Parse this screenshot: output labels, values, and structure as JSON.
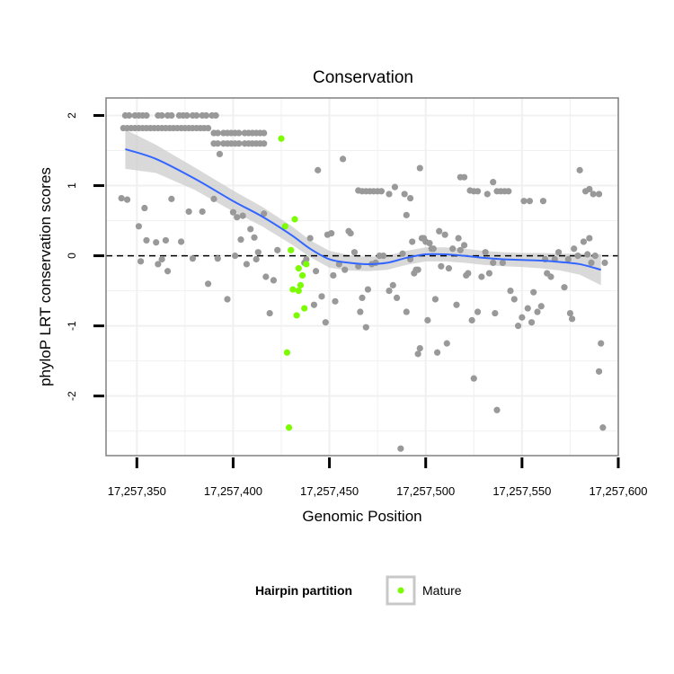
{
  "chart_data": {
    "type": "scatter",
    "title": "Conservation",
    "xlabel": "Genomic Position",
    "ylabel": "phyloP LRT conservation scores",
    "xlim": [
      17257334,
      17257600
    ],
    "ylim": [
      -2.85,
      2.25
    ],
    "xticks": [
      {
        "value": 17257350,
        "label": "17,257,350"
      },
      {
        "value": 17257400,
        "label": "17,257,400"
      },
      {
        "value": 17257450,
        "label": "17,257,450"
      },
      {
        "value": 17257500,
        "label": "17,257,500"
      },
      {
        "value": 17257550,
        "label": "17,257,550"
      },
      {
        "value": 17257600,
        "label": "17,257,600"
      }
    ],
    "yticks": [
      {
        "value": 2,
        "label": "2"
      },
      {
        "value": 1,
        "label": "1"
      },
      {
        "value": 0,
        "label": "0"
      },
      {
        "value": -1,
        "label": "-1"
      },
      {
        "value": -2,
        "label": "-2"
      }
    ],
    "grid": true,
    "reference_line": {
      "y": 0,
      "style": "dashed"
    },
    "legend": {
      "title": "Hairpin partition",
      "position": "bottom",
      "entries": [
        {
          "label": "Mature",
          "color": "#7cfc00"
        }
      ]
    },
    "colors": {
      "other": "#999999",
      "mature": "#7cfc00",
      "smooth": "#3366ff",
      "band": "#cccccc",
      "panel_border": "#808080",
      "grid": "#f0f0f0"
    },
    "series": [
      {
        "name": "",
        "color": "#999999",
        "points": [
          [
            17257344,
            2.0
          ],
          [
            17257346,
            2.0
          ],
          [
            17257349,
            2.0
          ],
          [
            17257351,
            2.0
          ],
          [
            17257353,
            2.0
          ],
          [
            17257355,
            2.0
          ],
          [
            17257361,
            2.0
          ],
          [
            17257363,
            2.0
          ],
          [
            17257366,
            2.0
          ],
          [
            17257368,
            2.0
          ],
          [
            17257372,
            2.0
          ],
          [
            17257374,
            2.0
          ],
          [
            17257376,
            2.0
          ],
          [
            17257379,
            2.0
          ],
          [
            17257381,
            2.0
          ],
          [
            17257384,
            2.0
          ],
          [
            17257386,
            2.0
          ],
          [
            17257389,
            2.0
          ],
          [
            17257391,
            2.0
          ],
          [
            17257343,
            1.82
          ],
          [
            17257345,
            1.82
          ],
          [
            17257347,
            1.82
          ],
          [
            17257349,
            1.82
          ],
          [
            17257351,
            1.82
          ],
          [
            17257353,
            1.82
          ],
          [
            17257355,
            1.82
          ],
          [
            17257357,
            1.82
          ],
          [
            17257359,
            1.82
          ],
          [
            17257361,
            1.82
          ],
          [
            17257363,
            1.82
          ],
          [
            17257365,
            1.82
          ],
          [
            17257367,
            1.82
          ],
          [
            17257369,
            1.82
          ],
          [
            17257371,
            1.82
          ],
          [
            17257373,
            1.82
          ],
          [
            17257375,
            1.82
          ],
          [
            17257377,
            1.82
          ],
          [
            17257379,
            1.82
          ],
          [
            17257381,
            1.82
          ],
          [
            17257383,
            1.82
          ],
          [
            17257385,
            1.82
          ],
          [
            17257387,
            1.82
          ],
          [
            17257390,
            1.75
          ],
          [
            17257392,
            1.75
          ],
          [
            17257395,
            1.75
          ],
          [
            17257397,
            1.75
          ],
          [
            17257399,
            1.75
          ],
          [
            17257401,
            1.75
          ],
          [
            17257403,
            1.75
          ],
          [
            17257406,
            1.75
          ],
          [
            17257408,
            1.75
          ],
          [
            17257410,
            1.75
          ],
          [
            17257412,
            1.75
          ],
          [
            17257414,
            1.75
          ],
          [
            17257416,
            1.75
          ],
          [
            17257390,
            1.6
          ],
          [
            17257392,
            1.6
          ],
          [
            17257395,
            1.6
          ],
          [
            17257397,
            1.6
          ],
          [
            17257399,
            1.6
          ],
          [
            17257401,
            1.6
          ],
          [
            17257403,
            1.6
          ],
          [
            17257406,
            1.6
          ],
          [
            17257408,
            1.6
          ],
          [
            17257410,
            1.6
          ],
          [
            17257412,
            1.6
          ],
          [
            17257414,
            1.6
          ],
          [
            17257416,
            1.6
          ],
          [
            17257393,
            1.45
          ],
          [
            17257342,
            0.82
          ],
          [
            17257345,
            0.8
          ],
          [
            17257354,
            0.68
          ],
          [
            17257351,
            0.42
          ],
          [
            17257355,
            0.22
          ],
          [
            17257360,
            0.19
          ],
          [
            17257365,
            0.22
          ],
          [
            17257373,
            0.2
          ],
          [
            17257377,
            0.63
          ],
          [
            17257384,
            0.63
          ],
          [
            17257368,
            0.81
          ],
          [
            17257390,
            0.81
          ],
          [
            17257352,
            -0.08
          ],
          [
            17257361,
            -0.12
          ],
          [
            17257363,
            -0.05
          ],
          [
            17257366,
            -0.22
          ],
          [
            17257379,
            -0.04
          ],
          [
            17257387,
            -0.4
          ],
          [
            17257392,
            -0.04
          ],
          [
            17257401,
            0.0
          ],
          [
            17257407,
            -0.12
          ],
          [
            17257397,
            -0.62
          ],
          [
            17257404,
            0.23
          ],
          [
            17257411,
            0.26
          ],
          [
            17257412,
            -0.05
          ],
          [
            17257416,
            0.6
          ],
          [
            17257400,
            0.62
          ],
          [
            17257402,
            0.55
          ],
          [
            17257405,
            0.57
          ],
          [
            17257409,
            0.38
          ],
          [
            17257413,
            0.05
          ],
          [
            17257417,
            -0.3
          ],
          [
            17257419,
            -0.82
          ],
          [
            17257421,
            -0.35
          ],
          [
            17257423,
            0.08
          ],
          [
            17257437,
            -0.1
          ],
          [
            17257438,
            -0.05
          ],
          [
            17257440,
            0.25
          ],
          [
            17257442,
            -0.7
          ],
          [
            17257443,
            -0.22
          ],
          [
            17257444,
            1.22
          ],
          [
            17257446,
            -0.58
          ],
          [
            17257448,
            -0.95
          ],
          [
            17257449,
            0.3
          ],
          [
            17257451,
            0.32
          ],
          [
            17257452,
            -0.28
          ],
          [
            17257453,
            -0.65
          ],
          [
            17257455,
            -0.12
          ],
          [
            17257457,
            1.38
          ],
          [
            17257458,
            -0.2
          ],
          [
            17257460,
            0.35
          ],
          [
            17257461,
            0.32
          ],
          [
            17257463,
            0.05
          ],
          [
            17257465,
            -0.15
          ],
          [
            17257466,
            -0.8
          ],
          [
            17257467,
            -0.6
          ],
          [
            17257469,
            -1.02
          ],
          [
            17257470,
            -0.48
          ],
          [
            17257472,
            -0.12
          ],
          [
            17257465,
            0.93
          ],
          [
            17257467,
            0.92
          ],
          [
            17257469,
            0.92
          ],
          [
            17257471,
            0.92
          ],
          [
            17257473,
            0.92
          ],
          [
            17257475,
            0.92
          ],
          [
            17257477,
            0.92
          ],
          [
            17257481,
            0.88
          ],
          [
            17257484,
            0.98
          ],
          [
            17257489,
            0.88
          ],
          [
            17257490,
            0.58
          ],
          [
            17257492,
            0.82
          ],
          [
            17257474,
            -0.1
          ],
          [
            17257476,
            0.0
          ],
          [
            17257478,
            0.0
          ],
          [
            17257481,
            -0.5
          ],
          [
            17257483,
            -0.42
          ],
          [
            17257485,
            -0.6
          ],
          [
            17257487,
            -2.75
          ],
          [
            17257488,
            0.03
          ],
          [
            17257490,
            -0.8
          ],
          [
            17257492,
            -0.05
          ],
          [
            17257493,
            0.2
          ],
          [
            17257494,
            -0.25
          ],
          [
            17257495,
            -0.2
          ],
          [
            17257496,
            -0.2
          ],
          [
            17257497,
            1.25
          ],
          [
            17257497,
            -1.32
          ],
          [
            17257496,
            -1.4
          ],
          [
            17257498,
            0.25
          ],
          [
            17257499,
            0.25
          ],
          [
            17257500,
            0.2
          ],
          [
            17257501,
            -0.92
          ],
          [
            17257502,
            0.18
          ],
          [
            17257503,
            0.1
          ],
          [
            17257504,
            0.1
          ],
          [
            17257505,
            -0.62
          ],
          [
            17257506,
            -1.38
          ],
          [
            17257507,
            0.35
          ],
          [
            17257508,
            -0.15
          ],
          [
            17257510,
            0.3
          ],
          [
            17257511,
            -1.25
          ],
          [
            17257512,
            -0.18
          ],
          [
            17257514,
            0.1
          ],
          [
            17257516,
            -0.7
          ],
          [
            17257517,
            0.25
          ],
          [
            17257518,
            0.08
          ],
          [
            17257520,
            0.15
          ],
          [
            17257521,
            -0.28
          ],
          [
            17257522,
            -0.25
          ],
          [
            17257524,
            -0.92
          ],
          [
            17257525,
            -1.75
          ],
          [
            17257527,
            -0.8
          ],
          [
            17257529,
            -0.3
          ],
          [
            17257531,
            0.05
          ],
          [
            17257533,
            -0.25
          ],
          [
            17257535,
            -0.1
          ],
          [
            17257536,
            -0.82
          ],
          [
            17257537,
            -2.2
          ],
          [
            17257540,
            -0.1
          ],
          [
            17257544,
            -0.5
          ],
          [
            17257546,
            -0.62
          ],
          [
            17257548,
            -1.0
          ],
          [
            17257550,
            -0.88
          ],
          [
            17257553,
            -0.75
          ],
          [
            17257555,
            -0.95
          ],
          [
            17257556,
            -0.52
          ],
          [
            17257558,
            -0.8
          ],
          [
            17257560,
            -0.72
          ],
          [
            17257562,
            -0.05
          ],
          [
            17257563,
            -0.25
          ],
          [
            17257565,
            -0.3
          ],
          [
            17257567,
            -0.05
          ],
          [
            17257569,
            0.05
          ],
          [
            17257572,
            -0.45
          ],
          [
            17257574,
            -0.05
          ],
          [
            17257575,
            -0.82
          ],
          [
            17257576,
            -0.9
          ],
          [
            17257577,
            0.1
          ],
          [
            17257579,
            0.0
          ],
          [
            17257582,
            0.2
          ],
          [
            17257584,
            0.02
          ],
          [
            17257585,
            0.25
          ],
          [
            17257586,
            -0.1
          ],
          [
            17257588,
            0.0
          ],
          [
            17257590,
            -1.65
          ],
          [
            17257591,
            -1.25
          ],
          [
            17257592,
            -2.45
          ],
          [
            17257593,
            -0.1
          ],
          [
            17257518,
            1.12
          ],
          [
            17257520,
            1.12
          ],
          [
            17257523,
            0.93
          ],
          [
            17257525,
            0.92
          ],
          [
            17257527,
            0.92
          ],
          [
            17257532,
            0.88
          ],
          [
            17257535,
            1.05
          ],
          [
            17257537,
            0.92
          ],
          [
            17257539,
            0.92
          ],
          [
            17257541,
            0.92
          ],
          [
            17257543,
            0.92
          ],
          [
            17257551,
            0.78
          ],
          [
            17257554,
            0.78
          ],
          [
            17257561,
            0.78
          ],
          [
            17257580,
            1.22
          ],
          [
            17257583,
            0.92
          ],
          [
            17257585,
            0.95
          ],
          [
            17257587,
            0.88
          ],
          [
            17257590,
            0.88
          ]
        ]
      },
      {
        "name": "Mature",
        "color": "#7cfc00",
        "points": [
          [
            17257425,
            1.67
          ],
          [
            17257427,
            0.42
          ],
          [
            17257428,
            -1.38
          ],
          [
            17257429,
            -2.45
          ],
          [
            17257430,
            0.08
          ],
          [
            17257431,
            -0.48
          ],
          [
            17257432,
            0.52
          ],
          [
            17257433,
            -0.85
          ],
          [
            17257434,
            -0.18
          ],
          [
            17257434,
            -0.5
          ],
          [
            17257435,
            -0.42
          ],
          [
            17257436,
            -0.28
          ],
          [
            17257437,
            -0.75
          ],
          [
            17257438,
            -0.12
          ]
        ]
      }
    ],
    "smooth": {
      "x": [
        17257344,
        17257360,
        17257380,
        17257400,
        17257415,
        17257430,
        17257440,
        17257450,
        17257460,
        17257470,
        17257480,
        17257490,
        17257500,
        17257510,
        17257520,
        17257530,
        17257540,
        17257550,
        17257560,
        17257570,
        17257580,
        17257591
      ],
      "y": [
        1.52,
        1.38,
        1.1,
        0.78,
        0.56,
        0.3,
        0.1,
        -0.05,
        -0.1,
        -0.12,
        -0.1,
        -0.03,
        0.02,
        0.02,
        0.0,
        -0.03,
        -0.05,
        -0.06,
        -0.07,
        -0.09,
        -0.12,
        -0.2
      ],
      "se": [
        0.28,
        0.2,
        0.16,
        0.15,
        0.14,
        0.13,
        0.12,
        0.12,
        0.11,
        0.1,
        0.1,
        0.1,
        0.1,
        0.1,
        0.1,
        0.1,
        0.1,
        0.1,
        0.11,
        0.12,
        0.15,
        0.22
      ]
    }
  }
}
